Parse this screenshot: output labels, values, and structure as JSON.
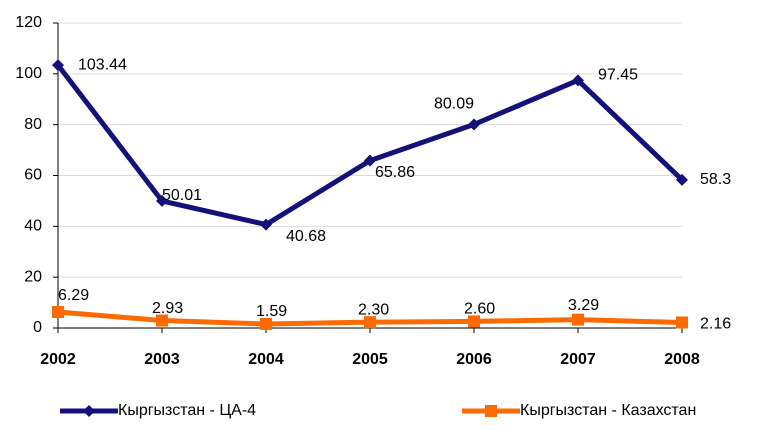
{
  "chart_data": {
    "type": "line",
    "categories": [
      "2002",
      "2003",
      "2004",
      "2005",
      "2006",
      "2007",
      "2008"
    ],
    "series": [
      {
        "name": "Кыргызстан - ЦА-4",
        "color": "#12127a",
        "marker": "diamond",
        "values": [
          103.44,
          50.01,
          40.68,
          65.86,
          80.09,
          97.45,
          58.3
        ]
      },
      {
        "name": "Кыргызстан - Казахстан",
        "color": "#ff6a00",
        "marker": "square",
        "values": [
          6.29,
          2.93,
          1.59,
          2.3,
          2.6,
          3.29,
          2.16
        ],
        "value_labels": [
          "6.29",
          "2.93",
          "1.59",
          "2.30",
          "2.60",
          "3.29",
          "2.16"
        ]
      }
    ],
    "ylim": [
      0,
      120
    ],
    "yticks": [
      0,
      20,
      40,
      60,
      80,
      100,
      120
    ],
    "grid": true,
    "legend": "bottom"
  }
}
